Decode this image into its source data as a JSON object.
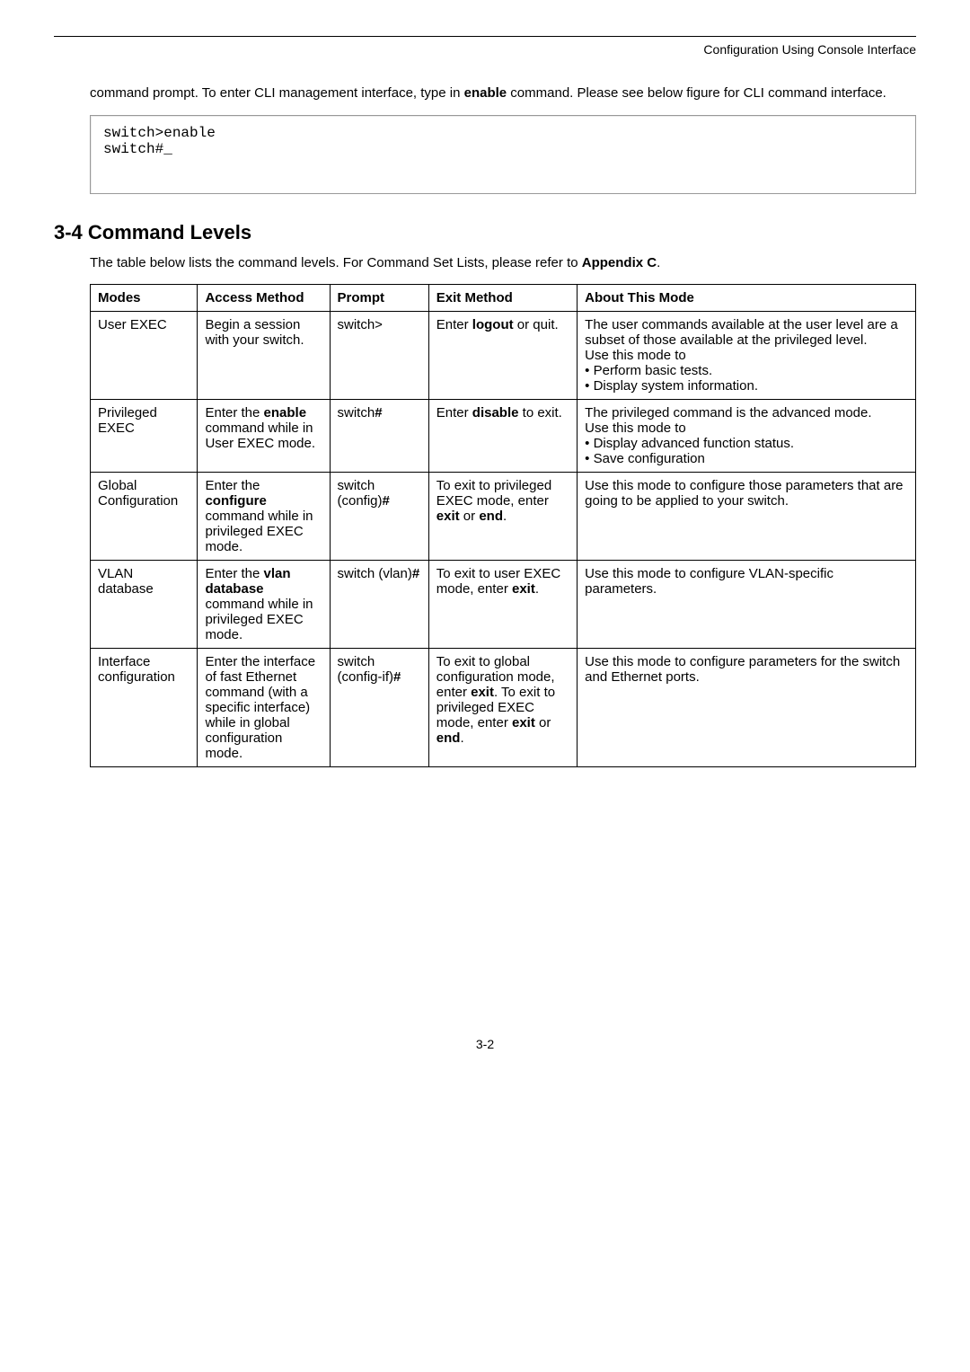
{
  "header": {
    "right_text": "Configuration Using Console Interface"
  },
  "intro_paragraph_parts": {
    "p1": "command prompt. To enter CLI management interface, type in ",
    "bold1": "enable",
    "p2": " command. Please see below figure for CLI command interface."
  },
  "console": {
    "line1": "switch>enable",
    "line2": "switch#_"
  },
  "section": {
    "number": "3-4",
    "title": " Command Levels"
  },
  "table_intro": {
    "p1": "The table below lists the command levels. For Command Set Lists, please refer to ",
    "bold1": "Appendix C",
    "p2": "."
  },
  "table": {
    "headers": {
      "modes": "Modes",
      "access": "Access Method",
      "prompt": "Prompt",
      "exit": "Exit Method",
      "about": "About This Mode"
    },
    "rows": [
      {
        "modes": "User EXEC",
        "access": "Begin a session with your switch.",
        "prompt": "switch>",
        "exit_p1": "Enter ",
        "exit_b1": "logout",
        "exit_p2": " or quit.",
        "about_lines": [
          "The user commands available at the user level are a subset of those available at the privileged level.",
          "Use this mode to",
          "• Perform basic tests.",
          "• Display system information."
        ]
      },
      {
        "modes": "Privileged EXEC",
        "access_p1": "Enter the ",
        "access_b1": "enable",
        "access_p2": " command while in User EXEC mode.",
        "prompt_p1": "switch",
        "prompt_b1": "#",
        "exit_p1": "Enter ",
        "exit_b1": "disable",
        "exit_p2": " to exit.",
        "about_lines": [
          "The privileged command is the advanced mode.",
          "Use this mode to",
          "• Display advanced function status.",
          "• Save configuration"
        ]
      },
      {
        "modes": "Global Configuration",
        "access_p1": "Enter the ",
        "access_b1": "configure",
        "access_p2": " command while in privileged EXEC mode.",
        "prompt_p1": "switch (config)",
        "prompt_b1": "#",
        "exit_p1": "To exit to privileged EXEC mode, enter ",
        "exit_b1": "exit",
        "exit_p2": " or ",
        "exit_b2": "end",
        "exit_p3": ".",
        "about": "Use this mode to configure those parameters that are going to be applied to your switch."
      },
      {
        "modes": "VLAN database",
        "access_p1": "Enter the ",
        "access_b1": "vlan database",
        "access_p2": " command while in privileged EXEC mode.",
        "prompt_p1": "switch (vlan)",
        "prompt_b1": "#",
        "exit_p1": "To exit to user EXEC mode, enter ",
        "exit_b1": "exit",
        "exit_p2": ".",
        "about": "Use this mode to configure VLAN-specific parameters."
      },
      {
        "modes": "Interface configuration",
        "access": "Enter the interface of fast Ethernet command (with a specific interface) while in global configuration mode.",
        "prompt_p1": "switch (config-if)",
        "prompt_b1": "#",
        "exit_p1": "To exit to global configuration mode, enter ",
        "exit_b1": "exit",
        "exit_p2": ". To exit to privileged EXEC mode, enter ",
        "exit_b2": "exit",
        "exit_p3": " or ",
        "exit_b3": "end",
        "exit_p4": ".",
        "about": "Use this mode to configure parameters for the switch and Ethernet ports."
      }
    ]
  },
  "footer": {
    "page_num": "3-2"
  }
}
